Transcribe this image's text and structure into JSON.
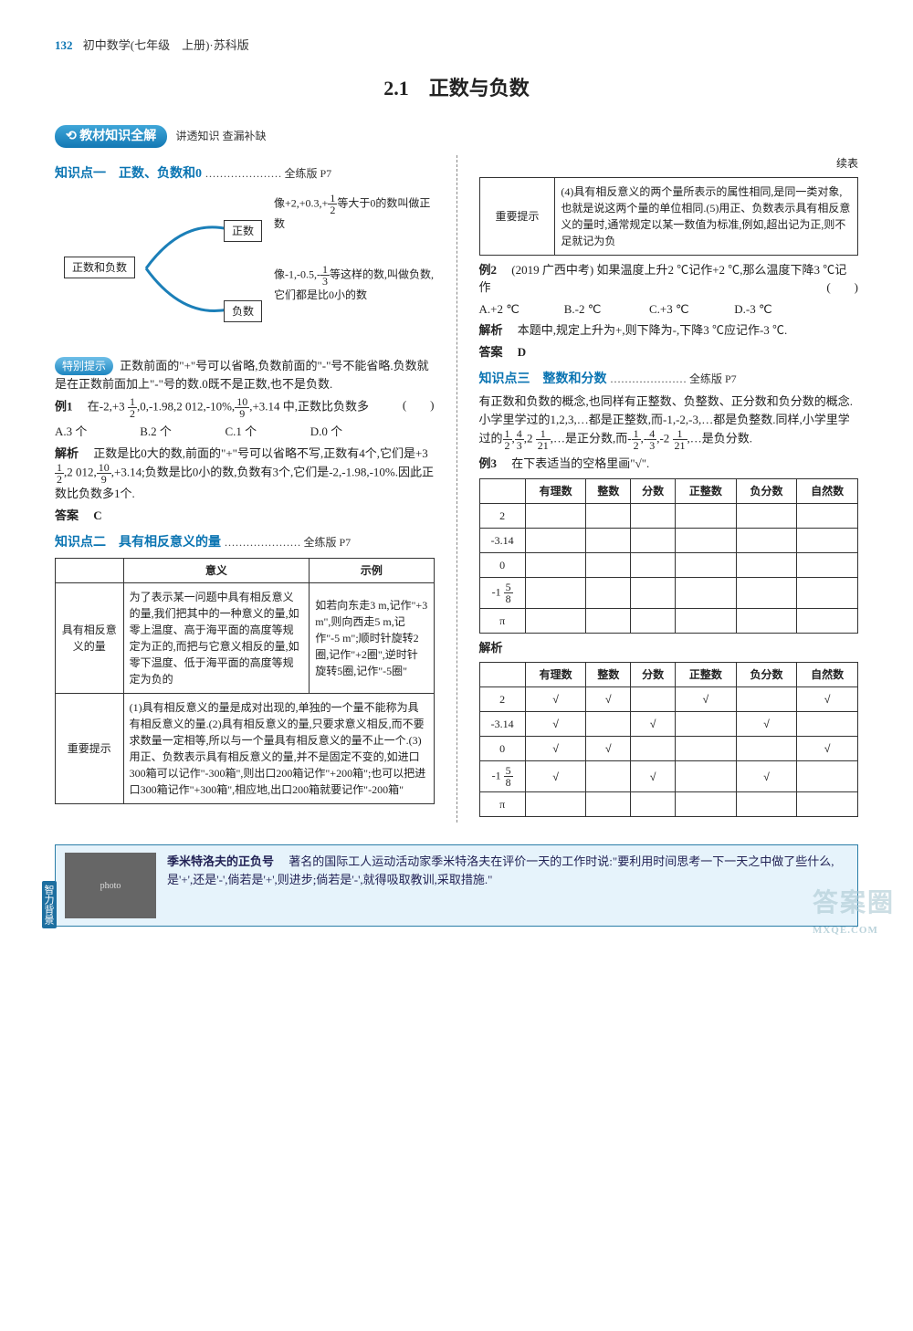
{
  "header": {
    "page_num": "132",
    "title": "初中数学(七年级　上册)·苏科版"
  },
  "chapter": "2.1　正数与负数",
  "section_pill": {
    "label": "教材知识全解",
    "sub": "讲透知识 查漏补缺"
  },
  "right_top_label": "续表",
  "kp1": {
    "title": "知识点一　正数、负数和0",
    "ref": "………………… 全练版 P7",
    "concept_map": {
      "root": "正数和负数",
      "pos_label": "正数",
      "neg_label": "负数",
      "pos_desc": "像+2,+0.3,+1/2等大于0的数叫做正数",
      "neg_desc": "像-1,-0.5,-1/3等这样的数,叫做负数,它们都是比0小的数"
    },
    "special_tip_label": "特别提示",
    "special_tip_text": "正数前面的\"+\"号可以省略,负数前面的\"-\"号不能省略.负数就是在正数前面加上\"-\"号的数.0既不是正数,也不是负数.",
    "ex1_label": "例1",
    "ex1_q": "在-2,+3 1/2,0,-1.98,2 012,-10%,10/9,+3.14中,正数比负数多",
    "ex1_choices": {
      "A": "A.3 个",
      "B": "B.2 个",
      "C": "C.1 个",
      "D": "D.0 个"
    },
    "ex1_analysis_label": "解析",
    "ex1_analysis": "正数是比0大的数,前面的\"+\"号可以省略不写,正数有4个,它们是+3 1/2,2 012,10/9,+3.14;负数是比0小的数,负数有3个,它们是-2,-1.98,-10%.因此正数比负数多1个.",
    "ex1_ans_label": "答案",
    "ex1_ans": "C"
  },
  "kp2": {
    "title": "知识点二　具有相反意义的量",
    "ref": "………………… 全练版 P7",
    "table": {
      "headers": [
        "",
        "意义",
        "示例"
      ],
      "row1_label": "具有相反意义的量",
      "row1_meaning": "为了表示某一问题中具有相反意义的量,我们把其中的一种意义的量,如零上温度、高于海平面的高度等规定为正的,而把与它意义相反的量,如零下温度、低于海平面的高度等规定为负的",
      "row1_example": "如若向东走3 m,记作\"+3 m\",则向西走5 m,记作\"-5 m\";顺时针旋转2圈,记作\"+2圈\",逆时针旋转5圈,记作\"-5圈\"",
      "row2_label": "重要提示",
      "row2_text": "(1)具有相反意义的量是成对出现的,单独的一个量不能称为具有相反意义的量.(2)具有相反意义的量,只要求意义相反,而不要求数量一定相等,所以与一个量具有相反意义的量不止一个.(3)用正、负数表示具有相反意义的量,并不是固定不变的,如进口300箱可以记作\"-300箱\",则出口200箱记作\"+200箱\";也可以把进口300箱记作\"+300箱\",相应地,出口200箱就要记作\"-200箱\""
    },
    "cont_table": {
      "label": "重要提示",
      "text": "(4)具有相反意义的两个量所表示的属性相同,是同一类对象,也就是说这两个量的单位相同.(5)用正、负数表示具有相反意义的量时,通常规定以某一数值为标准,例如,超出记为正,则不足就记为负"
    },
    "ex2_label": "例2",
    "ex2_src": "(2019 广西中考)",
    "ex2_q": "如果温度上升2 ℃记作+2 ℃,那么温度下降3 ℃记作",
    "ex2_choices": {
      "A": "A.+2 ℃",
      "B": "B.-2 ℃",
      "C": "C.+3 ℃",
      "D": "D.-3 ℃"
    },
    "ex2_analysis_label": "解析",
    "ex2_analysis": "本题中,规定上升为+,则下降为-,下降3 ℃应记作-3 ℃.",
    "ex2_ans_label": "答案",
    "ex2_ans": "D"
  },
  "kp3": {
    "title": "知识点三　整数和分数",
    "ref": "………………… 全练版 P7",
    "intro": "有正数和负数的概念,也同样有正整数、负整数、正分数和负分数的概念.小学里学过的1,2,3,…都是正整数,而-1,-2,-3,…都是负整数.同样,小学里学过的1/2,4/3,2 1/21,…是正分数,而-1/2,-4/3,-2 1/21,…是负分数.",
    "ex3_label": "例3",
    "ex3_q": "在下表适当的空格里画\"√\".",
    "table_headers": [
      "",
      "有理数",
      "整数",
      "分数",
      "正整数",
      "负分数",
      "自然数"
    ],
    "table_rows": [
      "2",
      "-3.14",
      "0",
      "-1 5/8",
      "π"
    ],
    "analysis_label": "解析",
    "sol_headers": [
      "",
      "有理数",
      "整数",
      "分数",
      "正整数",
      "负分数",
      "自然数"
    ],
    "sol": {
      "rows": [
        {
          "label": "2",
          "cells": [
            "√",
            "√",
            "",
            "√",
            "",
            "√"
          ]
        },
        {
          "label": "-3.14",
          "cells": [
            "√",
            "",
            "√",
            "",
            "√",
            ""
          ]
        },
        {
          "label": "0",
          "cells": [
            "√",
            "√",
            "",
            "",
            "",
            "√"
          ]
        },
        {
          "label": "-1 5/8",
          "cells": [
            "√",
            "",
            "√",
            "",
            "√",
            ""
          ]
        },
        {
          "label": "π",
          "cells": [
            "",
            "",
            "",
            "",
            "",
            ""
          ]
        }
      ]
    }
  },
  "footer": {
    "tab": "智力背景",
    "bold": "季米特洛夫的正负号",
    "text": "著名的国际工人运动活动家季米特洛夫在评价一天的工作时说:\"要利用时间思考一下一天之中做了些什么,是'+',还是'-',倘若是'+',则进步;倘若是'-',就得吸取教训,采取措施.\""
  },
  "watermark": {
    "name": "答案圈",
    "url": "MXQE.COM"
  },
  "colors": {
    "primary_blue": "#0a74b2",
    "pill_grad_top": "#3fa6d8",
    "pill_grad_bot": "#1378b4",
    "footer_bg": "#e6f3fb",
    "footer_border": "#2a7ea8"
  }
}
